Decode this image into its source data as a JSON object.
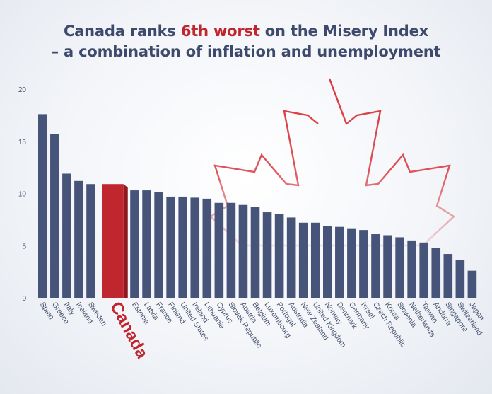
{
  "title": {
    "line1_before": "Canada ranks ",
    "line1_highlight": "6th worst",
    "line1_after": " on the Misery Index",
    "line2": "– a combination of inflation and unemployment"
  },
  "colors": {
    "bar": "#46547a",
    "highlight": "#c0262d",
    "leaf": "#d9363d",
    "axis_text": "#4a5572",
    "title": "#3d4a6b"
  },
  "icons": [
    "maple-leaf-icon"
  ],
  "chart_data": {
    "type": "bar",
    "title": "Canada ranks 6th worst on the Misery Index – a combination of inflation and unemployment",
    "xlabel": "",
    "ylabel": "",
    "ylim": [
      0,
      20
    ],
    "yticks": [
      0,
      5,
      10,
      15,
      20
    ],
    "grid": false,
    "highlight": "Canada",
    "categories": [
      "Spain",
      "Greece",
      "Italy",
      "Iceland",
      "Sweden",
      "Canada",
      "Estonia",
      "Latvia",
      "France",
      "Finland",
      "United States",
      "Ireland",
      "Lithuania",
      "Cyprus",
      "Slovak Republic",
      "Austria",
      "Belgium",
      "Luxembourg",
      "Portugal",
      "Australia",
      "New Zealand",
      "United Kingdom",
      "Norway",
      "Denmark",
      "Germany",
      "Israel",
      "Czech Republic",
      "Korea",
      "Slovenia",
      "Netherlands",
      "Taiwan",
      "Andorra",
      "Singapore",
      "Switzerland",
      "Japan"
    ],
    "values": [
      17.6,
      15.7,
      11.9,
      11.2,
      10.9,
      10.9,
      10.3,
      10.3,
      10.1,
      9.7,
      9.7,
      9.6,
      9.5,
      9.1,
      9.1,
      8.9,
      8.7,
      8.2,
      8.0,
      7.7,
      7.2,
      7.2,
      6.9,
      6.8,
      6.6,
      6.5,
      6.1,
      6.0,
      5.8,
      5.5,
      5.3,
      4.8,
      4.2,
      3.6,
      2.6
    ]
  }
}
